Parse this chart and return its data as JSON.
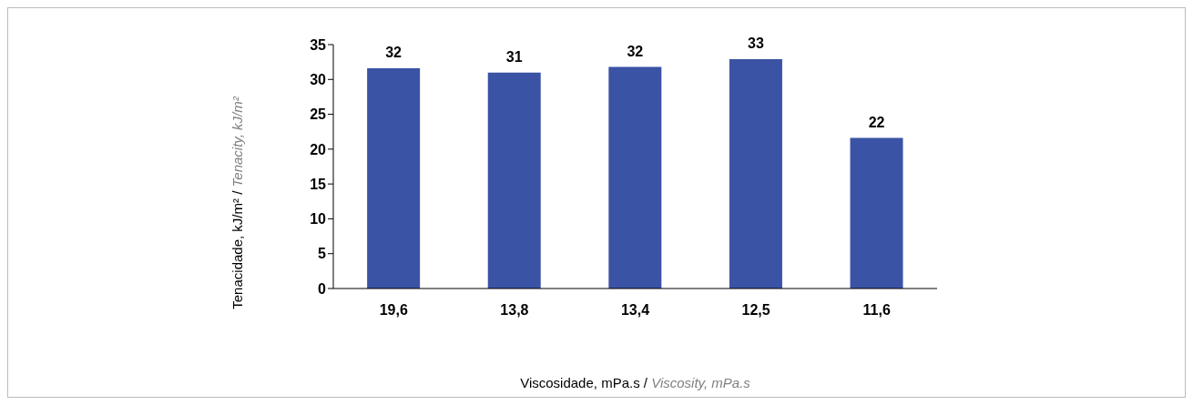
{
  "chart_data": {
    "type": "bar",
    "xlabel": "Viscosidade, mPa.s / Viscosity, mPa.s",
    "ylabel": "Tenacidade, kJ/m² / Tenacity, kJ/m²",
    "categories": [
      "19,6",
      "13,8",
      "13,4",
      "12,5",
      "11,6"
    ],
    "values": [
      31.6,
      31.0,
      31.8,
      32.9,
      21.6
    ],
    "value_labels": [
      "32",
      "31",
      "32",
      "33",
      "22"
    ],
    "color": "#3a53a4",
    "ylim": [
      0,
      35
    ],
    "yticks": [
      0,
      5,
      10,
      15,
      20,
      25,
      30,
      35
    ],
    "grid": false
  }
}
